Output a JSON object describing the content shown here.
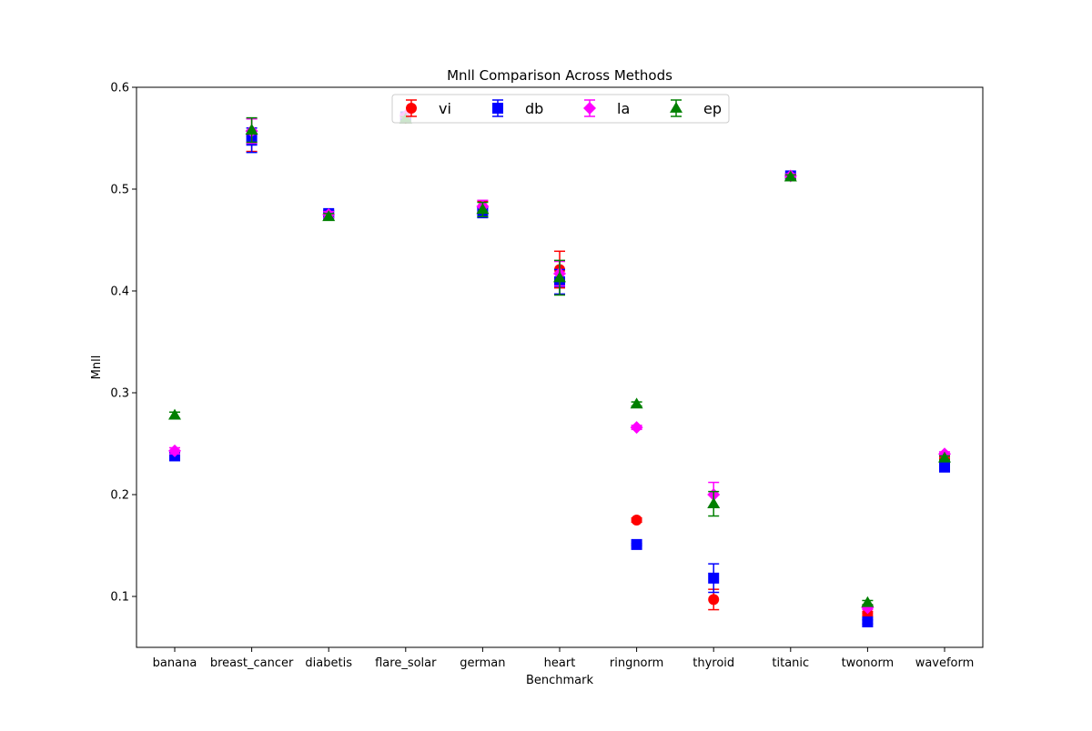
{
  "chart_data": {
    "type": "scatter",
    "title": "Mnll Comparison Across Methods",
    "xlabel": "Benchmark",
    "ylabel": "Mnll",
    "categories": [
      "banana",
      "breast_cancer",
      "diabetis",
      "flare_solar",
      "german",
      "heart",
      "ringnorm",
      "thyroid",
      "titanic",
      "twonorm",
      "waveform"
    ],
    "ylim": [
      0.05,
      0.6
    ],
    "yticks": [
      0.1,
      0.2,
      0.3,
      0.4,
      0.5,
      0.6
    ],
    "ytick_labels": [
      "0.1",
      "0.2",
      "0.3",
      "0.4",
      "0.5",
      "0.6"
    ],
    "grid": false,
    "legend_position": "top-center",
    "series": [
      {
        "name": "vi",
        "color": "#ff0000",
        "marker": "circle",
        "values": [
          0.239,
          0.553,
          0.475,
          0.57,
          0.482,
          0.421,
          0.175,
          0.097,
          0.513,
          0.083,
          0.237
        ],
        "errors": [
          0.003,
          0.016,
          0.003,
          0.003,
          0.006,
          0.018,
          0.002,
          0.01,
          0.002,
          0.002,
          0.002
        ]
      },
      {
        "name": "db",
        "color": "#0000ff",
        "marker": "square",
        "values": [
          0.238,
          0.548,
          0.476,
          0.571,
          0.477,
          0.409,
          0.151,
          0.118,
          0.513,
          0.075,
          0.227
        ],
        "errors": [
          0.003,
          0.012,
          0.003,
          0.002,
          0.005,
          0.012,
          0.001,
          0.014,
          0.002,
          0.002,
          0.002
        ]
      },
      {
        "name": "la",
        "color": "#ff00ff",
        "marker": "diamond",
        "values": [
          0.243,
          0.557,
          0.475,
          0.572,
          0.483,
          0.417,
          0.266,
          0.2,
          0.513,
          0.089,
          0.24
        ],
        "errors": [
          0.003,
          0.012,
          0.003,
          0.002,
          0.006,
          0.012,
          0.002,
          0.012,
          0.002,
          0.002,
          0.002
        ]
      },
      {
        "name": "ep",
        "color": "#008000",
        "marker": "triangle",
        "values": [
          0.278,
          0.558,
          0.473,
          0.569,
          0.48,
          0.413,
          0.289,
          0.191,
          0.512,
          0.094,
          0.236
        ],
        "errors": [
          0.003,
          0.012,
          0.003,
          0.002,
          0.007,
          0.017,
          0.002,
          0.012,
          0.002,
          0.002,
          0.002
        ]
      }
    ]
  }
}
